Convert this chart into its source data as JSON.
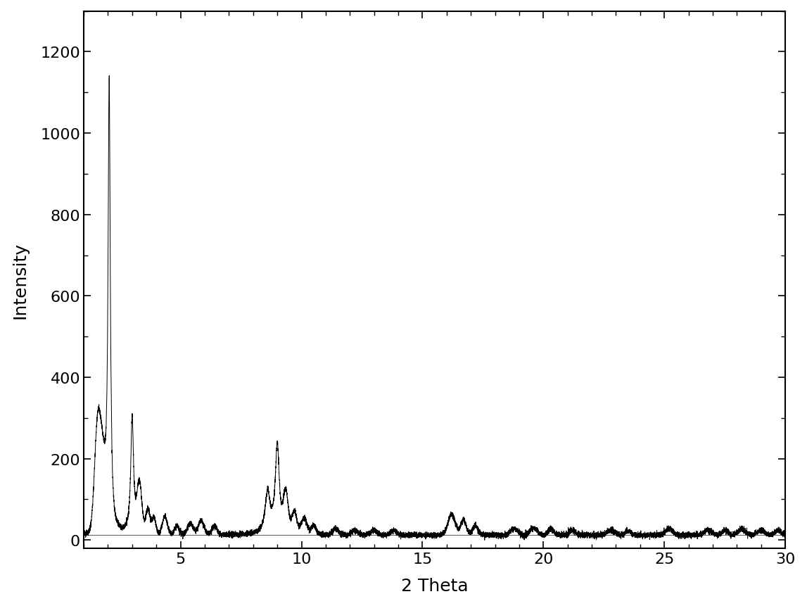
{
  "xlabel": "2 Theta",
  "ylabel": "Intensity",
  "xlim": [
    1,
    30
  ],
  "ylim": [
    -20,
    1300
  ],
  "yticks": [
    0,
    200,
    400,
    600,
    800,
    1000,
    1200
  ],
  "xticks": [
    5,
    10,
    15,
    20,
    25,
    30
  ],
  "line_color": "#000000",
  "line_width": 0.7,
  "background_color": "#ffffff",
  "xlabel_fontsize": 18,
  "ylabel_fontsize": 18,
  "tick_fontsize": 16,
  "baseline_y": 12
}
